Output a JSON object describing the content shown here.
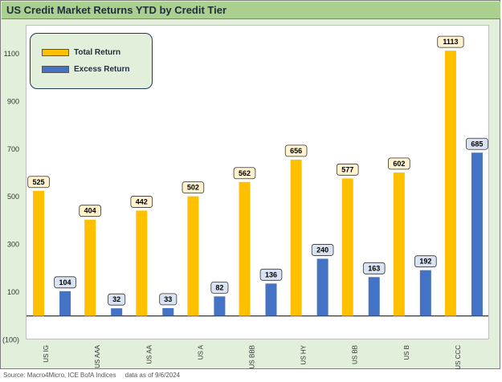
{
  "chart_data": {
    "type": "bar",
    "title": "US Credit Market Returns YTD by Credit Tier",
    "categories": [
      "US IG",
      "US AAA",
      "US AA",
      "US A",
      "US BBB",
      "US HY",
      "US BB",
      "US B",
      "US CCC"
    ],
    "series": [
      {
        "name": "Total Return",
        "values": [
          525,
          404,
          442,
          502,
          562,
          656,
          577,
          602,
          1113
        ],
        "color": "#ffc000",
        "label_bg": "#fff2cc"
      },
      {
        "name": "Excess Return",
        "values": [
          104,
          32,
          33,
          82,
          136,
          240,
          163,
          192,
          685
        ],
        "color": "#4472c4",
        "label_bg": "#dae3f3"
      }
    ],
    "yticks": [
      -100,
      100,
      300,
      500,
      700,
      900,
      1100
    ],
    "ytick_labels": [
      "(100)",
      "100",
      "300",
      "500",
      "700",
      "900",
      "1100"
    ],
    "ylim": [
      -100,
      1200
    ],
    "legend_position": "top-left",
    "grid": false
  },
  "source": {
    "text": "Source: Macro4Micro, ICE BofA Indices     data as of 9/6/2024"
  }
}
